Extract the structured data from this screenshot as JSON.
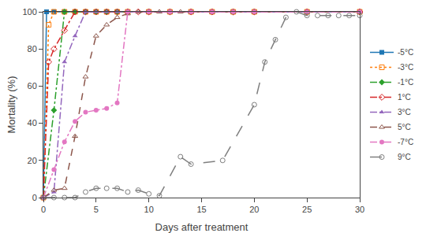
{
  "chart_data": {
    "type": "line",
    "xlabel": "Days after treatment",
    "ylabel": "Mortality (%)",
    "xlim": [
      0,
      30
    ],
    "ylim": [
      0,
      100
    ],
    "xticks": [
      0,
      5,
      10,
      15,
      20,
      25,
      30
    ],
    "yticks": [
      0,
      20,
      40,
      60,
      80,
      100
    ],
    "grid": false,
    "legend": "right",
    "series": [
      {
        "name": "-5°C",
        "marker": "square",
        "line_style": "solid",
        "x": [
          0,
          0.3,
          1,
          2,
          3,
          4,
          5,
          6,
          7,
          8,
          10,
          12,
          14,
          16,
          18,
          20,
          25,
          30
        ],
        "values": [
          0,
          100,
          100,
          100,
          100,
          100,
          100,
          100,
          100,
          100,
          100,
          100,
          100,
          100,
          100,
          100,
          100,
          100
        ]
      },
      {
        "name": "-3°C",
        "marker": "square-open",
        "line_style": "dot",
        "x": [
          0,
          0.5,
          1,
          2,
          3,
          4,
          5,
          6,
          7,
          8,
          10,
          12,
          14,
          16,
          18,
          20,
          25,
          30
        ],
        "values": [
          0,
          93,
          100,
          100,
          100,
          100,
          100,
          100,
          100,
          100,
          100,
          100,
          100,
          100,
          100,
          100,
          100,
          100
        ]
      },
      {
        "name": "-1°C",
        "marker": "diamond",
        "line_style": "dashdot",
        "x": [
          0,
          1,
          2,
          3,
          4,
          5,
          6,
          7,
          8,
          10,
          12,
          14,
          16,
          18,
          20,
          25,
          30
        ],
        "values": [
          0,
          47,
          100,
          100,
          100,
          100,
          100,
          100,
          100,
          100,
          100,
          100,
          100,
          100,
          100,
          100,
          100
        ]
      },
      {
        "name": "1°C",
        "marker": "diamond-open",
        "line_style": "dashdot",
        "x": [
          0,
          0.5,
          1,
          2,
          3,
          4,
          5,
          6,
          7,
          8,
          9,
          10,
          12,
          14,
          16,
          18,
          20,
          25,
          30
        ],
        "values": [
          0,
          73,
          80,
          90,
          100,
          100,
          100,
          100,
          100,
          100,
          100,
          100,
          100,
          100,
          100,
          100,
          100,
          100,
          100
        ]
      },
      {
        "name": "3°C",
        "marker": "triangle-up",
        "line_style": "dashdot",
        "x": [
          0,
          1,
          2,
          3,
          4,
          5,
          6,
          7,
          8,
          10,
          12,
          14,
          16,
          18,
          20,
          25,
          30
        ],
        "values": [
          0,
          3,
          73,
          87,
          100,
          100,
          100,
          100,
          100,
          100,
          100,
          100,
          100,
          100,
          100,
          100,
          100
        ]
      },
      {
        "name": "5°C",
        "marker": "triangle-up-open",
        "line_style": "dash",
        "x": [
          0,
          1,
          2,
          3,
          4,
          5,
          6,
          7,
          8,
          9,
          10,
          11,
          12,
          13,
          14,
          16,
          18,
          20,
          25,
          30
        ],
        "values": [
          0,
          4,
          5,
          33,
          65,
          87,
          93,
          97,
          99,
          100,
          100,
          100,
          100,
          100,
          100,
          100,
          100,
          100,
          100,
          100
        ]
      },
      {
        "name": "-7°C",
        "marker": "circle",
        "line_style": "dashdot",
        "x": [
          0,
          1,
          2,
          3,
          4,
          5,
          6,
          7,
          8,
          10,
          12,
          14,
          16,
          18,
          20,
          25,
          30
        ],
        "values": [
          0,
          15,
          30,
          41,
          46,
          47,
          48,
          51,
          100,
          100,
          100,
          100,
          100,
          100,
          100,
          100,
          100
        ]
      },
      {
        "name": "9°C",
        "marker": "circle-open",
        "line_style": "longdash",
        "x": [
          0,
          1,
          2,
          3,
          4,
          5,
          6,
          7,
          8,
          9,
          10,
          11,
          13,
          14,
          17,
          20,
          21,
          22,
          23,
          24,
          25,
          26,
          27,
          28,
          29,
          30
        ],
        "values": [
          0,
          0,
          0,
          0,
          3,
          5,
          5,
          5,
          3,
          4,
          2,
          1,
          22,
          18,
          20,
          50,
          73,
          85,
          97,
          100,
          98,
          98,
          98,
          98,
          98,
          98
        ]
      }
    ]
  }
}
